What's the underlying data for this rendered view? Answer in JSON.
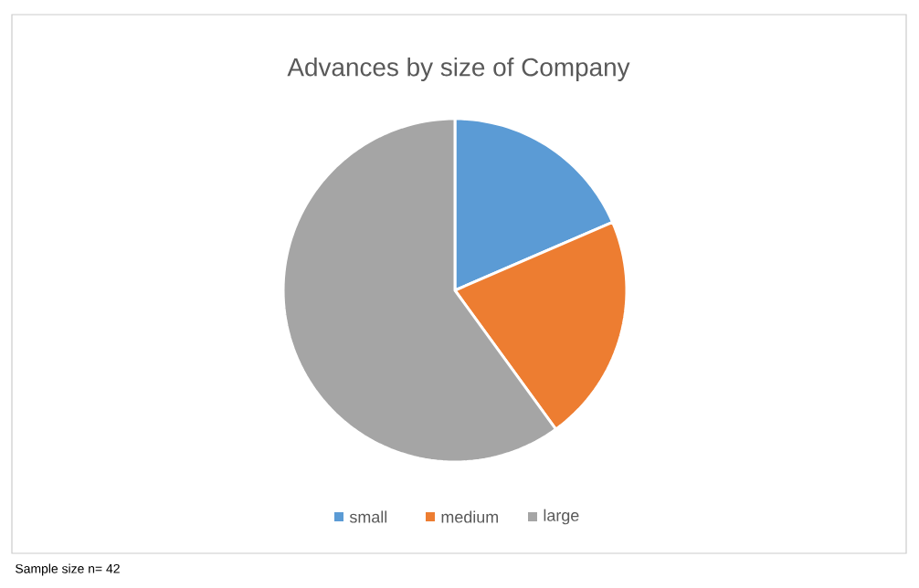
{
  "chart_data": {
    "type": "pie",
    "title": "Advances by size of Company",
    "categories": [
      "small",
      "medium",
      "large"
    ],
    "values": [
      18.5,
      21.5,
      60
    ],
    "colors": [
      "#5b9bd5",
      "#ed7d31",
      "#a5a5a5"
    ],
    "legend": "bottom",
    "annotations": [
      "Sample size n= 42"
    ]
  }
}
